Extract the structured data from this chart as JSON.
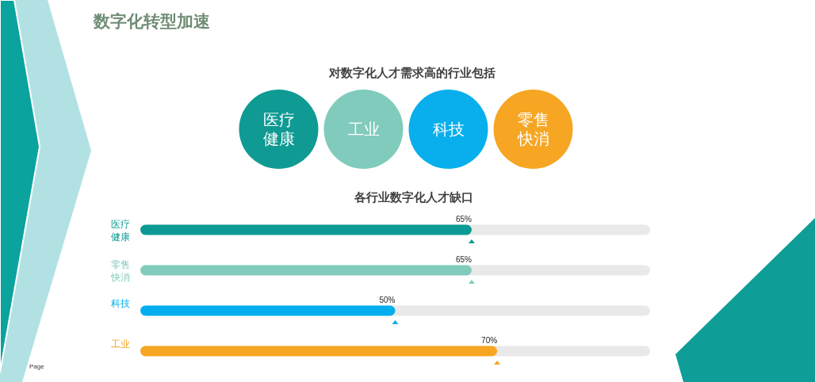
{
  "chart_data": [
    {
      "type": "other",
      "title": "数字化转型加速",
      "subtitle": "对数字化人才需求高的行业包括",
      "categories": [
        "医疗健康",
        "工业",
        "科技",
        "零售快消"
      ],
      "colors": [
        "#0f9a93",
        "#80cbbc",
        "#08afec",
        "#f6a623"
      ]
    },
    {
      "type": "bar",
      "orientation": "horizontal",
      "title": "各行业数字化人才缺口",
      "categories": [
        "医疗健康",
        "零售快消",
        "科技",
        "工业"
      ],
      "values": [
        65,
        65,
        50,
        70
      ],
      "colors": [
        "#0b9a94",
        "#80cbbc",
        "#04aeee",
        "#f6a623"
      ],
      "xlim": [
        0,
        100
      ],
      "value_labels": [
        "65%",
        "65%",
        "50%",
        "70%"
      ],
      "marker": "triangle",
      "tick_labels": "y",
      "annotations": [
        "Page"
      ]
    }
  ]
}
